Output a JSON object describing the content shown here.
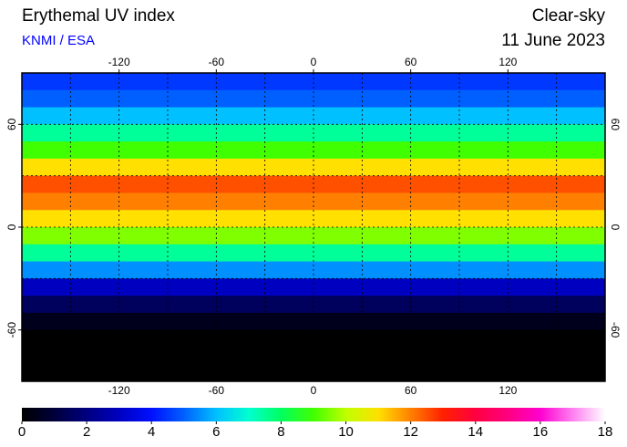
{
  "chart_data": {
    "type": "map",
    "title": "Erythemal UV index",
    "credit": "KNMI / ESA",
    "condition": "Clear-sky",
    "date": "11 June 2023",
    "xlim": [
      -180,
      180
    ],
    "ylim": [
      -90,
      90
    ],
    "xticks": [
      -120,
      -60,
      0,
      60,
      120
    ],
    "yticks": [
      -60,
      0,
      60
    ],
    "xgrid": [
      -150,
      -120,
      -90,
      -60,
      -30,
      0,
      30,
      60,
      90,
      120,
      150
    ],
    "ygrid": [
      -60,
      -30,
      0,
      30,
      60
    ],
    "field": {
      "lat": [
        85,
        75,
        65,
        55,
        45,
        35,
        25,
        15,
        5,
        -5,
        -15,
        -25,
        -35,
        -45,
        -55,
        -65,
        -75,
        -85
      ],
      "uv": [
        4.5,
        5,
        6,
        7.5,
        9,
        11,
        12.5,
        12,
        11,
        9.5,
        7.5,
        5.5,
        3,
        1.5,
        0.5,
        0,
        0,
        0
      ]
    },
    "clim": [
      0,
      18
    ],
    "cticks": [
      0,
      2,
      4,
      6,
      8,
      10,
      12,
      14,
      16,
      18
    ],
    "colormap": [
      "#000000",
      "#00003a",
      "#000080",
      "#0000c0",
      "#0010ff",
      "#0060ff",
      "#00c0ff",
      "#00ffd0",
      "#00ff60",
      "#40ff00",
      "#c0ff00",
      "#ffe000",
      "#ff8000",
      "#ff2000",
      "#ff0040",
      "#ff0080",
      "#ff00d0",
      "#ff80f0",
      "#ffffff"
    ]
  }
}
